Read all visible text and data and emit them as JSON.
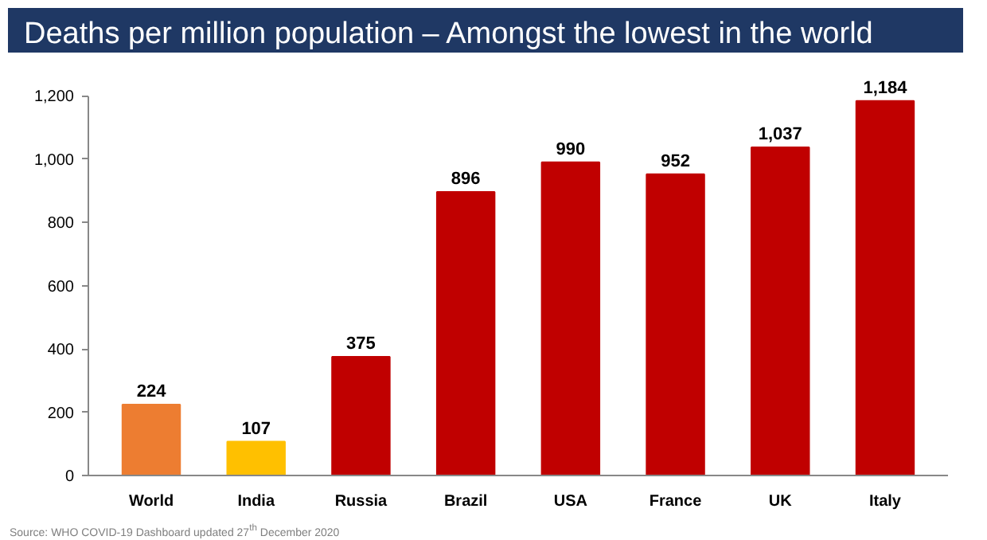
{
  "chart_data": {
    "type": "bar",
    "title": "Deaths per million population – Amongst the lowest in the world",
    "categories": [
      "World",
      "India",
      "Russia",
      "Brazil",
      "USA",
      "France",
      "UK",
      "Italy"
    ],
    "values": [
      224,
      107,
      375,
      896,
      990,
      952,
      1037,
      1184
    ],
    "colors": [
      "#ed7d31",
      "#ffc000",
      "#c00000",
      "#c00000",
      "#c00000",
      "#c00000",
      "#c00000",
      "#c00000"
    ],
    "value_labels": [
      "224",
      "107",
      "375",
      "896",
      "990",
      "952",
      "1,037",
      "1,184"
    ],
    "ylim": [
      0,
      1200
    ],
    "yticks": [
      0,
      {
        "value": 200,
        "label": "200"
      },
      {
        "value": 400,
        "label": "400"
      },
      {
        "value": 600,
        "label": "600"
      },
      {
        "value": 800,
        "label": "800"
      },
      {
        "value": 1000,
        "label": "1,000"
      },
      {
        "value": 1200,
        "label": "1,200"
      }
    ],
    "grid": false,
    "annotations": [
      "Source: WHO COVID-19 Dashboard updated 27$^{th}$ December 2020"
    ]
  }
}
